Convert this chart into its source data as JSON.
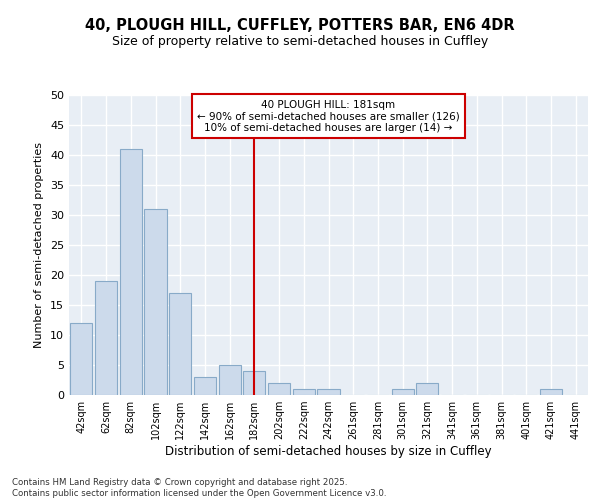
{
  "title1": "40, PLOUGH HILL, CUFFLEY, POTTERS BAR, EN6 4DR",
  "title2": "Size of property relative to semi-detached houses in Cuffley",
  "xlabel": "Distribution of semi-detached houses by size in Cuffley",
  "ylabel": "Number of semi-detached properties",
  "bar_labels": [
    "42sqm",
    "62sqm",
    "82sqm",
    "102sqm",
    "122sqm",
    "142sqm",
    "162sqm",
    "182sqm",
    "202sqm",
    "222sqm",
    "242sqm",
    "261sqm",
    "281sqm",
    "301sqm",
    "321sqm",
    "341sqm",
    "361sqm",
    "381sqm",
    "401sqm",
    "421sqm",
    "441sqm"
  ],
  "bar_values": [
    12,
    19,
    41,
    31,
    17,
    3,
    5,
    4,
    2,
    1,
    1,
    0,
    0,
    1,
    2,
    0,
    0,
    0,
    0,
    1,
    0
  ],
  "bar_color": "#ccdaeb",
  "bar_edge_color": "#88aac8",
  "vline_x_idx": 7,
  "vline_color": "#cc0000",
  "annotation_line1": "40 PLOUGH HILL: 181sqm",
  "annotation_line2": "← 90% of semi-detached houses are smaller (126)",
  "annotation_line3": "10% of semi-detached houses are larger (14) →",
  "annotation_box_edgecolor": "#cc0000",
  "ylim_max": 50,
  "yticks": [
    0,
    5,
    10,
    15,
    20,
    25,
    30,
    35,
    40,
    45,
    50
  ],
  "plot_bg_color": "#e8eef5",
  "fig_bg_color": "#ffffff",
  "grid_color": "#ffffff",
  "footer_text": "Contains HM Land Registry data © Crown copyright and database right 2025.\nContains public sector information licensed under the Open Government Licence v3.0."
}
